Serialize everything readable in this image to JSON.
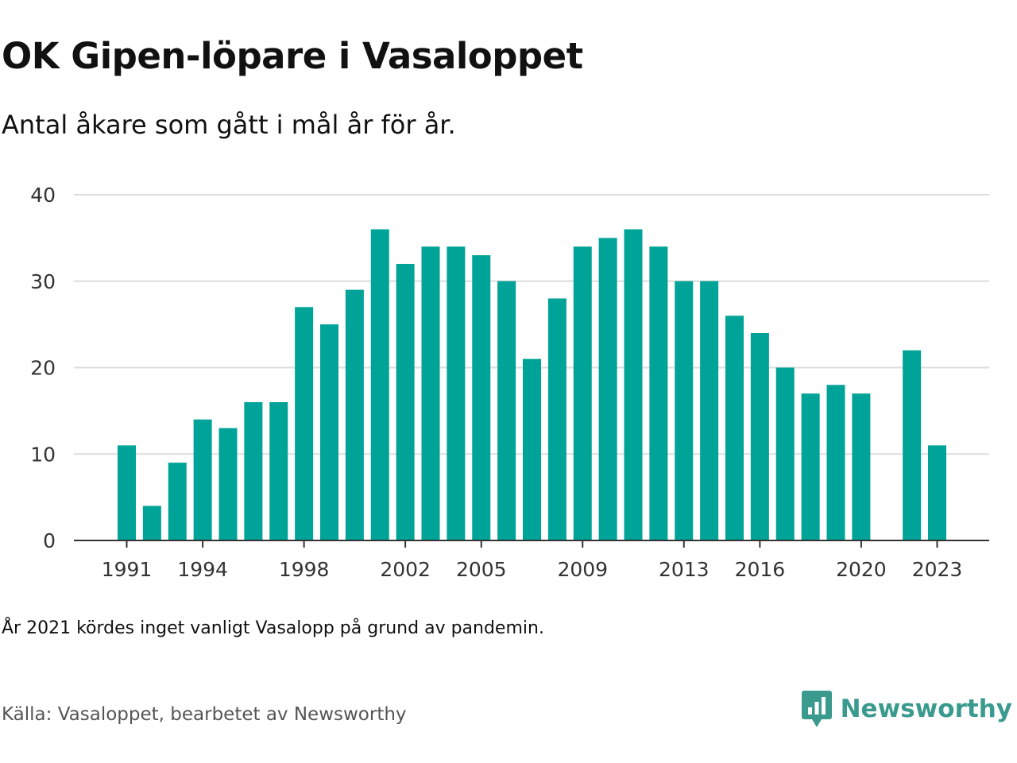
{
  "title": "OK Gipen-löpare i Vasaloppet",
  "subtitle": "Antal åkare som gått i mål år för år.",
  "note": "År 2021 kördes inget vanligt Vasalopp på grund av pandemin.",
  "source": "Källa: Vasaloppet, bearbetet av Newsworthy",
  "brand": {
    "name": "Newsworthy",
    "color": "#3a9a8e",
    "icon": "newsworthy-logo-icon"
  },
  "colors": {
    "bar": "#00a397",
    "grid": "#dddddd",
    "axis": "#333333"
  },
  "chart_data": {
    "type": "bar",
    "years": [
      1991,
      1992,
      1993,
      1994,
      1995,
      1996,
      1997,
      1998,
      1999,
      2000,
      2001,
      2002,
      2003,
      2004,
      2005,
      2006,
      2007,
      2008,
      2009,
      2010,
      2011,
      2012,
      2013,
      2014,
      2015,
      2016,
      2017,
      2018,
      2019,
      2020,
      2021,
      2022,
      2023
    ],
    "values": [
      11,
      4,
      9,
      14,
      13,
      16,
      16,
      27,
      25,
      29,
      36,
      32,
      34,
      34,
      33,
      30,
      21,
      28,
      34,
      35,
      36,
      34,
      30,
      30,
      26,
      24,
      20,
      17,
      18,
      17,
      null,
      22,
      11
    ],
    "x_tick_labels": [
      "1991",
      "1994",
      "1998",
      "2002",
      "2005",
      "2009",
      "2013",
      "2016",
      "2020",
      "2023"
    ],
    "y_ticks": [
      0,
      10,
      20,
      30,
      40
    ],
    "ylim": [
      0,
      40
    ],
    "grid": true,
    "xlabel": "",
    "ylabel": ""
  }
}
